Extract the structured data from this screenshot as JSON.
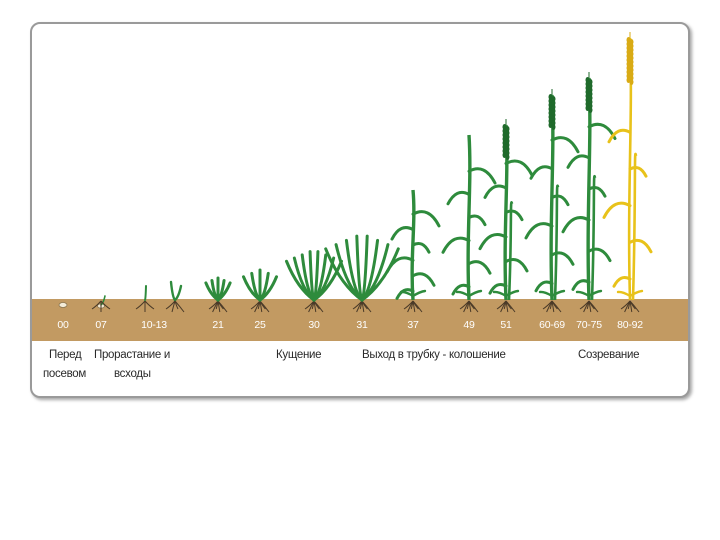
{
  "stages": [
    {
      "code": "00",
      "kind": "seed"
    },
    {
      "code": "07",
      "kind": "sprout"
    },
    {
      "code": "10-13",
      "kind": "seedling"
    },
    {
      "code": "21",
      "kind": "leafy"
    },
    {
      "code": "25",
      "kind": "leafy"
    },
    {
      "code": "30",
      "kind": "bush"
    },
    {
      "code": "31",
      "kind": "bush"
    },
    {
      "code": "37",
      "kind": "stem"
    },
    {
      "code": "49",
      "kind": "stem"
    },
    {
      "code": "51",
      "kind": "eared"
    },
    {
      "code": "60-69",
      "kind": "eared"
    },
    {
      "code": "70-75",
      "kind": "eared"
    },
    {
      "code": "80-92",
      "kind": "ripe"
    }
  ],
  "groups": {
    "before_sowing_line1": "Перед",
    "before_sowing_line2": "посевом",
    "germination_line1": "Прорастание и",
    "germination_line2": "всходы",
    "tillering": "Кущение",
    "stem_extension": "Выход в трубку - колошение",
    "ripening": "Созревание"
  },
  "colors": {
    "soil": "#c29a62",
    "plant": "#2e8b3c",
    "plant_dark": "#1f6a2b",
    "ripe": "#e8c21a",
    "root": "#4a3a28"
  }
}
